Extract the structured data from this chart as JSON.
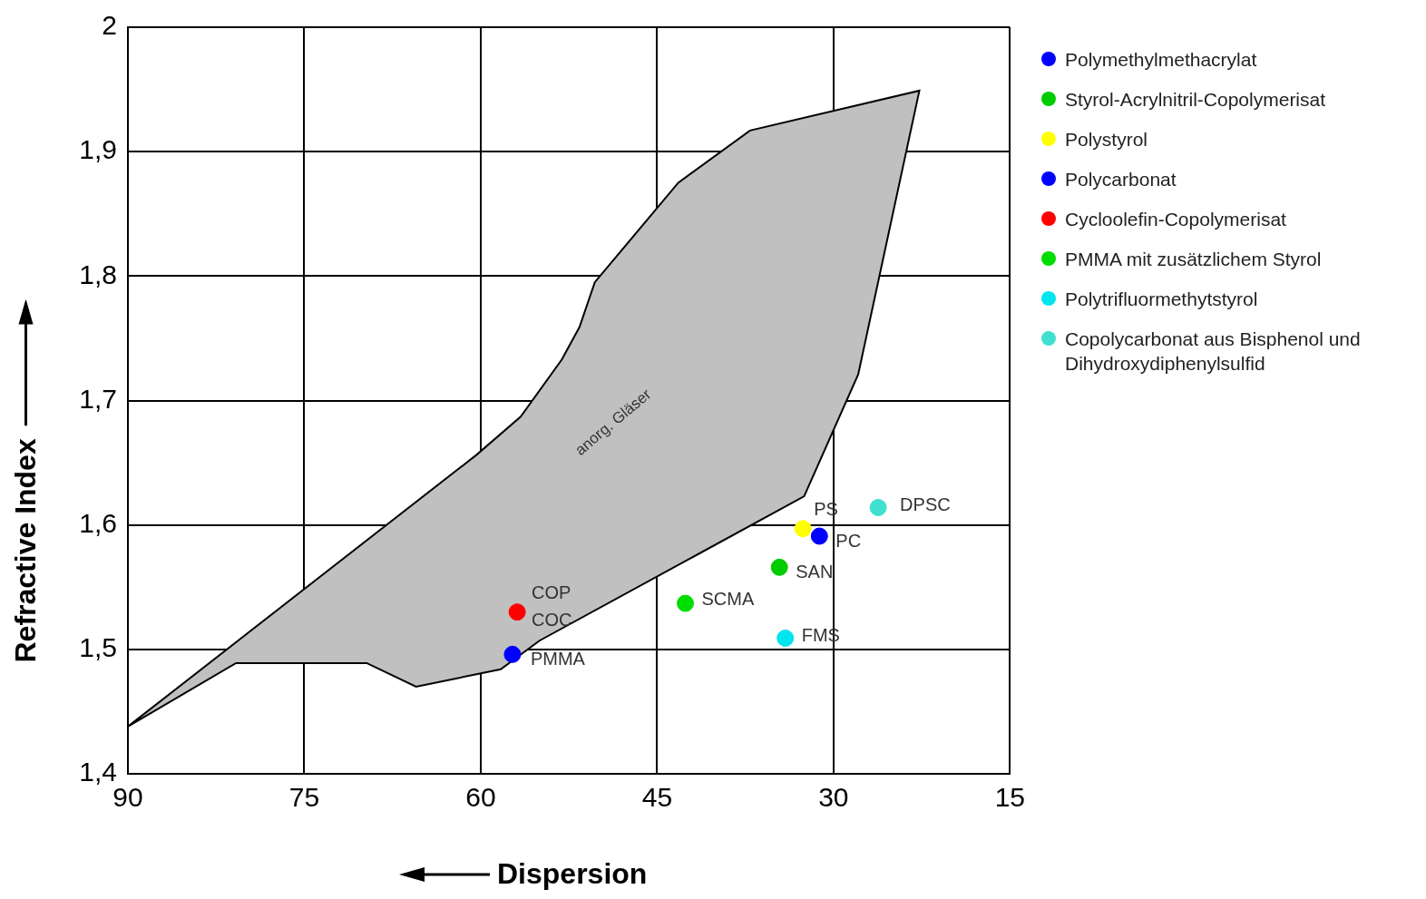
{
  "chart_data": {
    "type": "scatter",
    "xlabel": "Dispersion",
    "ylabel": "Refractive Index",
    "xlim": [
      90,
      15
    ],
    "ylim": [
      1.4,
      2
    ],
    "xticks": [
      90,
      75,
      60,
      45,
      30,
      15
    ],
    "yticks": [
      {
        "value": 1.4,
        "label": "1,4"
      },
      {
        "value": 1.5,
        "label": "1,5"
      },
      {
        "value": 1.6,
        "label": "1,6"
      },
      {
        "value": 1.7,
        "label": "1,7"
      },
      {
        "value": 1.8,
        "label": "1,8"
      },
      {
        "value": 1.9,
        "label": "1,9"
      },
      2
    ],
    "grid": true,
    "legend": "right",
    "series": [
      {
        "type": "area",
        "color": "#c0c0c0",
        "x": [
          90,
          80.8,
          69.7,
          65.5,
          58.3,
          55.0,
          32.5,
          27.9,
          22.7,
          37.1,
          43.2,
          50.3,
          51.6,
          53.1,
          56.6,
          60.4,
          90
        ],
        "values": [
          1.438,
          1.489,
          1.489,
          1.47,
          1.484,
          1.507,
          1.623,
          1.721,
          1.949,
          1.917,
          1.875,
          1.795,
          1.759,
          1.733,
          1.687,
          1.656,
          1.438
        ]
      },
      {
        "name": "Polymethylmethacrylat",
        "color": "#0000ff",
        "marker": "circle",
        "x": [
          57.3
        ],
        "values": [
          1.496
        ]
      },
      {
        "name": "Styrol-Acrylnitril-Copolymerisat",
        "color": "#00cc00",
        "marker": "circle",
        "x": [
          34.6
        ],
        "values": [
          1.566
        ]
      },
      {
        "name": "Polystyrol",
        "color": "#ffff00",
        "marker": "circle",
        "x": [
          32.6
        ],
        "values": [
          1.597
        ]
      },
      {
        "name": "Polycarbonat",
        "color": "#0000ff",
        "marker": "circle",
        "x": [
          31.2
        ],
        "values": [
          1.591
        ]
      },
      {
        "name": "Cycloolefin-Copolymerisat",
        "color": "#ff0000",
        "marker": "circle",
        "x": [
          56.9
        ],
        "values": [
          1.53
        ]
      },
      {
        "name": "PMMA mit zusätzlichem Styrol",
        "color": "#00dd00",
        "marker": "circle",
        "x": [
          42.6
        ],
        "values": [
          1.537
        ]
      },
      {
        "name": "Polytrifluormethytstyrol",
        "color": "#00e5ee",
        "marker": "circle",
        "x": [
          34.1
        ],
        "values": [
          1.509
        ]
      },
      {
        "name": "Copolycarbonat aus Bisphenol und Dihydroxydiphenylsulfid",
        "color": "#40e0d0",
        "marker": "circle",
        "x": [
          26.2
        ],
        "values": [
          1.614
        ]
      }
    ],
    "annotations": [
      "anorg. Gläser",
      {
        "text": "PMMA",
        "x": 57.3,
        "y": 1.496
      },
      {
        "text": "COP",
        "x": 56.9,
        "y": 1.53
      },
      {
        "text": "COC",
        "x": 56.9,
        "y": 1.53
      },
      {
        "text": "SCMA",
        "x": 42.6,
        "y": 1.537
      },
      {
        "text": "FMS",
        "x": 34.1,
        "y": 1.509
      },
      {
        "text": "SAN",
        "x": 34.6,
        "y": 1.566
      },
      {
        "text": "PS",
        "x": 32.6,
        "y": 1.597
      },
      {
        "text": "PC",
        "x": 31.2,
        "y": 1.591
      },
      {
        "text": "DPSC",
        "x": 26.2,
        "y": 1.614
      }
    ]
  }
}
